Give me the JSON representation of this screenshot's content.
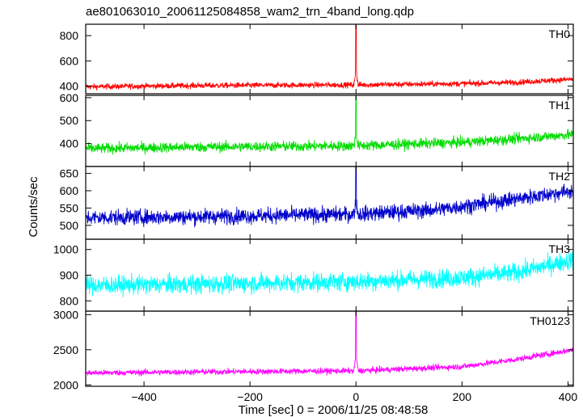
{
  "title": "ae801063010_20061125084858_wam2_trn_4band_long.qdp",
  "chart_data": {
    "type": "line",
    "title": "ae801063010_20061125084858_wam2_trn_4band_long.qdp",
    "xlabel": "Time [sec] 0 = 2006/11/25 08:48:58",
    "ylabel": "Counts/sec",
    "xlim": [
      -510,
      410
    ],
    "x_ticks": [
      -400,
      -200,
      0,
      200,
      400
    ],
    "x_tick_labels": [
      "−400",
      "−200",
      "0",
      "200",
      "400"
    ],
    "grid": false,
    "panels": [
      {
        "name": "TH0",
        "color": "#ff0000",
        "ylim": [
          340,
          890
        ],
        "y_ticks": [
          400,
          600,
          800
        ],
        "baseline": [
          [
            -510,
            395
          ],
          [
            -300,
            405
          ],
          [
            0,
            410
          ],
          [
            200,
            420
          ],
          [
            300,
            430
          ],
          [
            410,
            455
          ]
        ],
        "noise": 16,
        "spike": {
          "x": 0,
          "peak": 890
        }
      },
      {
        "name": "TH1",
        "color": "#00dd00",
        "ylim": [
          300,
          610
        ],
        "y_ticks": [
          400,
          500,
          600
        ],
        "baseline": [
          [
            -510,
            378
          ],
          [
            -300,
            385
          ],
          [
            0,
            390
          ],
          [
            200,
            405
          ],
          [
            300,
            420
          ],
          [
            410,
            440
          ]
        ],
        "noise": 16,
        "spike": {
          "x": 0,
          "peak": 610
        }
      },
      {
        "name": "TH2",
        "color": "#0000cc",
        "ylim": [
          460,
          670
        ],
        "y_ticks": [
          500,
          550,
          600,
          650
        ],
        "baseline": [
          [
            -510,
            522
          ],
          [
            -300,
            525
          ],
          [
            0,
            532
          ],
          [
            150,
            545
          ],
          [
            250,
            565
          ],
          [
            410,
            600
          ]
        ],
        "noise": 16,
        "spike": {
          "x": 0,
          "peak": 670
        }
      },
      {
        "name": "TH3",
        "color": "#00ffff",
        "ylim": [
          760,
          1040
        ],
        "y_ticks": [
          800,
          900,
          1000
        ],
        "baseline": [
          [
            -510,
            860
          ],
          [
            -300,
            865
          ],
          [
            0,
            875
          ],
          [
            200,
            890
          ],
          [
            300,
            910
          ],
          [
            410,
            960
          ]
        ],
        "noise": 26,
        "spike": null
      },
      {
        "name": "TH0123",
        "color": "#ff00ff",
        "ylim": [
          1980,
          3050
        ],
        "y_ticks": [
          2000,
          2500,
          3000
        ],
        "baseline": [
          [
            -510,
            2170
          ],
          [
            -300,
            2185
          ],
          [
            0,
            2200
          ],
          [
            200,
            2260
          ],
          [
            300,
            2360
          ],
          [
            410,
            2500
          ]
        ],
        "noise": 30,
        "spike": {
          "x": 0,
          "peak": 3050
        }
      }
    ]
  }
}
